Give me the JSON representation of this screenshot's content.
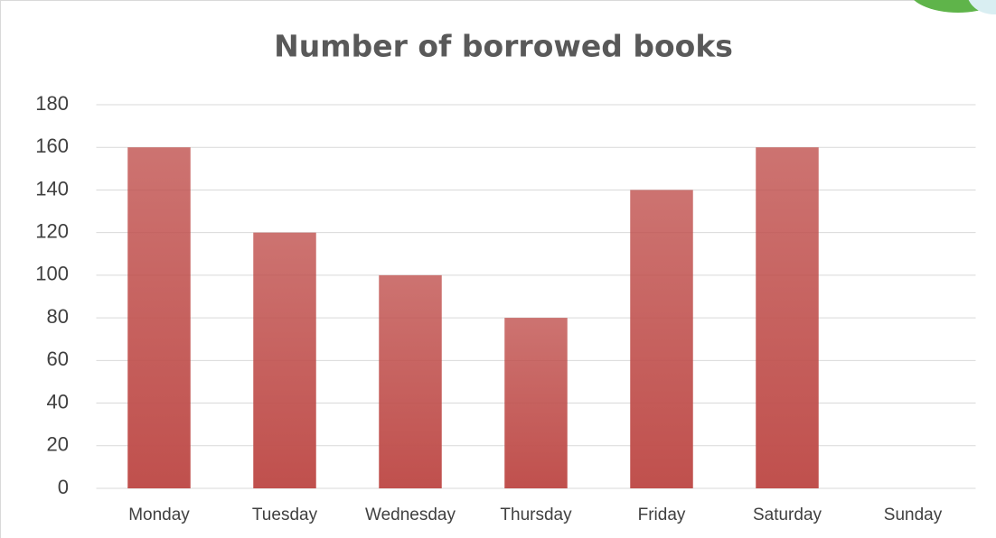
{
  "chart_data": {
    "type": "bar",
    "title": "Number of borrowed books",
    "categories": [
      "Monday",
      "Tuesday",
      "Wednesday",
      "Thursday",
      "Friday",
      "Saturday",
      "Sunday"
    ],
    "values": [
      160,
      120,
      100,
      80,
      140,
      160,
      null
    ],
    "color": "#c0504d",
    "ylim": [
      0,
      180
    ],
    "yticks": [
      0,
      20,
      40,
      60,
      80,
      100,
      120,
      140,
      160,
      180
    ],
    "grid": true
  }
}
